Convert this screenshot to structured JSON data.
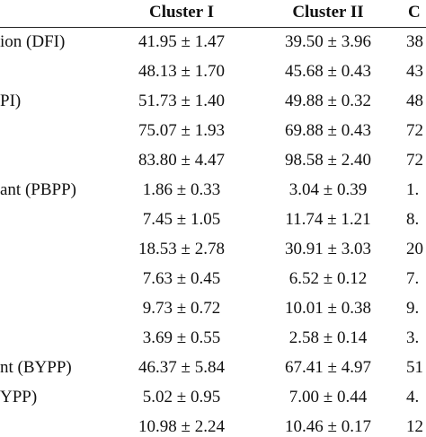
{
  "table": {
    "header": [
      "Cluster I",
      "Cluster II",
      "C"
    ],
    "rows": [
      {
        "label": "ion (DFI)",
        "cells": [
          "41.95 ± 1.47",
          "39.50 ± 3.96",
          "38"
        ]
      },
      {
        "cells": [
          "48.13 ± 1.70",
          "45.68 ± 0.43",
          "43"
        ]
      },
      {
        "label": "PI)",
        "cells": [
          "51.73 ± 1.40",
          "49.88 ± 0.32",
          "48"
        ]
      },
      {
        "cells": [
          "75.07 ± 1.93",
          "69.88 ± 0.43",
          "72"
        ]
      },
      {
        "cells": [
          "83.80 ± 4.47",
          "98.58 ± 2.40",
          "72"
        ]
      },
      {
        "label": "ant (PBPP)",
        "cells": [
          "1.86 ± 0.33",
          "3.04 ± 0.39",
          "1."
        ]
      },
      {
        "cells": [
          "7.45 ± 1.05",
          "11.74 ± 1.21",
          "8."
        ]
      },
      {
        "cells": [
          "18.53 ± 2.78",
          "30.91 ± 3.03",
          "20"
        ]
      },
      {
        "cells": [
          "7.63 ± 0.45",
          "6.52 ± 0.12",
          "7."
        ]
      },
      {
        "cells": [
          "9.73 ± 0.72",
          "10.01 ± 0.38",
          "9."
        ]
      },
      {
        "cells": [
          "3.69 ± 0.55",
          "2.58 ± 0.14",
          "3."
        ]
      },
      {
        "label": "nt (BYPP)",
        "cells": [
          "46.37 ± 5.84",
          "67.41 ± 4.97",
          "51"
        ]
      },
      {
        "label": "YPP)",
        "cells": [
          "5.02 ± 0.95",
          "7.00 ± 0.44",
          "4."
        ]
      },
      {
        "cells": [
          "10.98 ± 2.24",
          "10.46 ± 0.17",
          "12"
        ]
      }
    ]
  }
}
